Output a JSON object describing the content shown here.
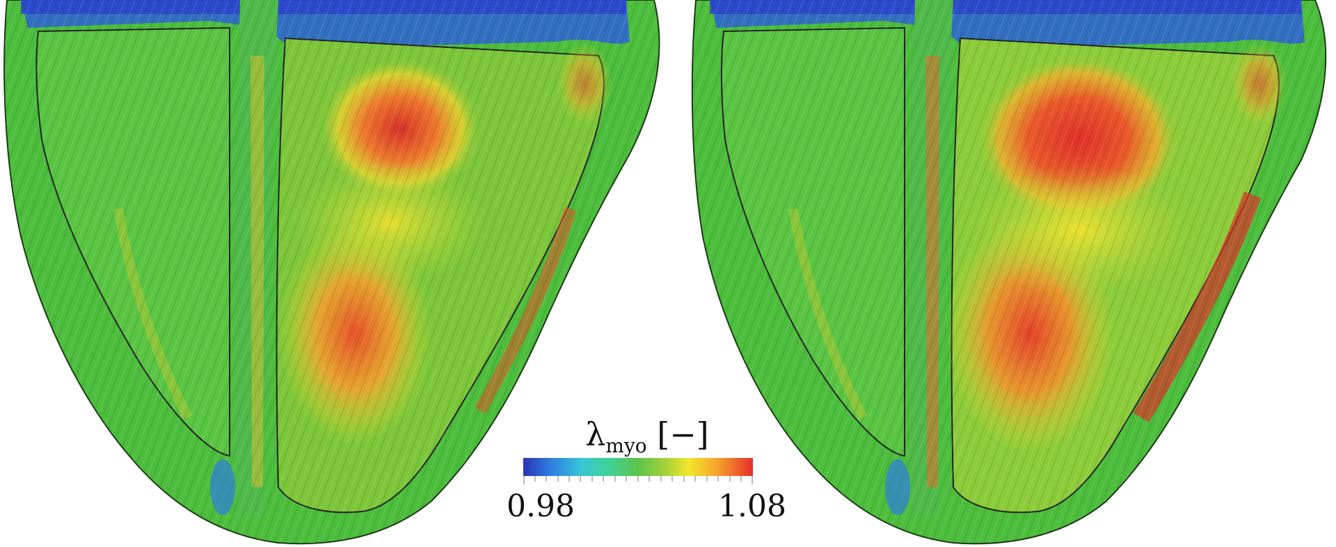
{
  "figure": {
    "panels": [
      {
        "name": "left-heart",
        "description_colors": [
          "#3fbf3a",
          "#f2e22e",
          "#e53a2a",
          "#2a3bd0"
        ]
      },
      {
        "name": "right-heart",
        "description_colors": [
          "#3fbf3a",
          "#f2e22e",
          "#e53a2a",
          "#2a3bd0"
        ]
      }
    ],
    "colorbar": {
      "label_symbol": "λ",
      "label_subscript": "myo",
      "label_unit": "[−]",
      "min_label": "0.98",
      "max_label": "1.08",
      "colors": [
        "#2a34b8",
        "#2f7de0",
        "#38c6d8",
        "#5cc44a",
        "#f1e62c",
        "#f5a02c",
        "#e5302a"
      ]
    }
  }
}
